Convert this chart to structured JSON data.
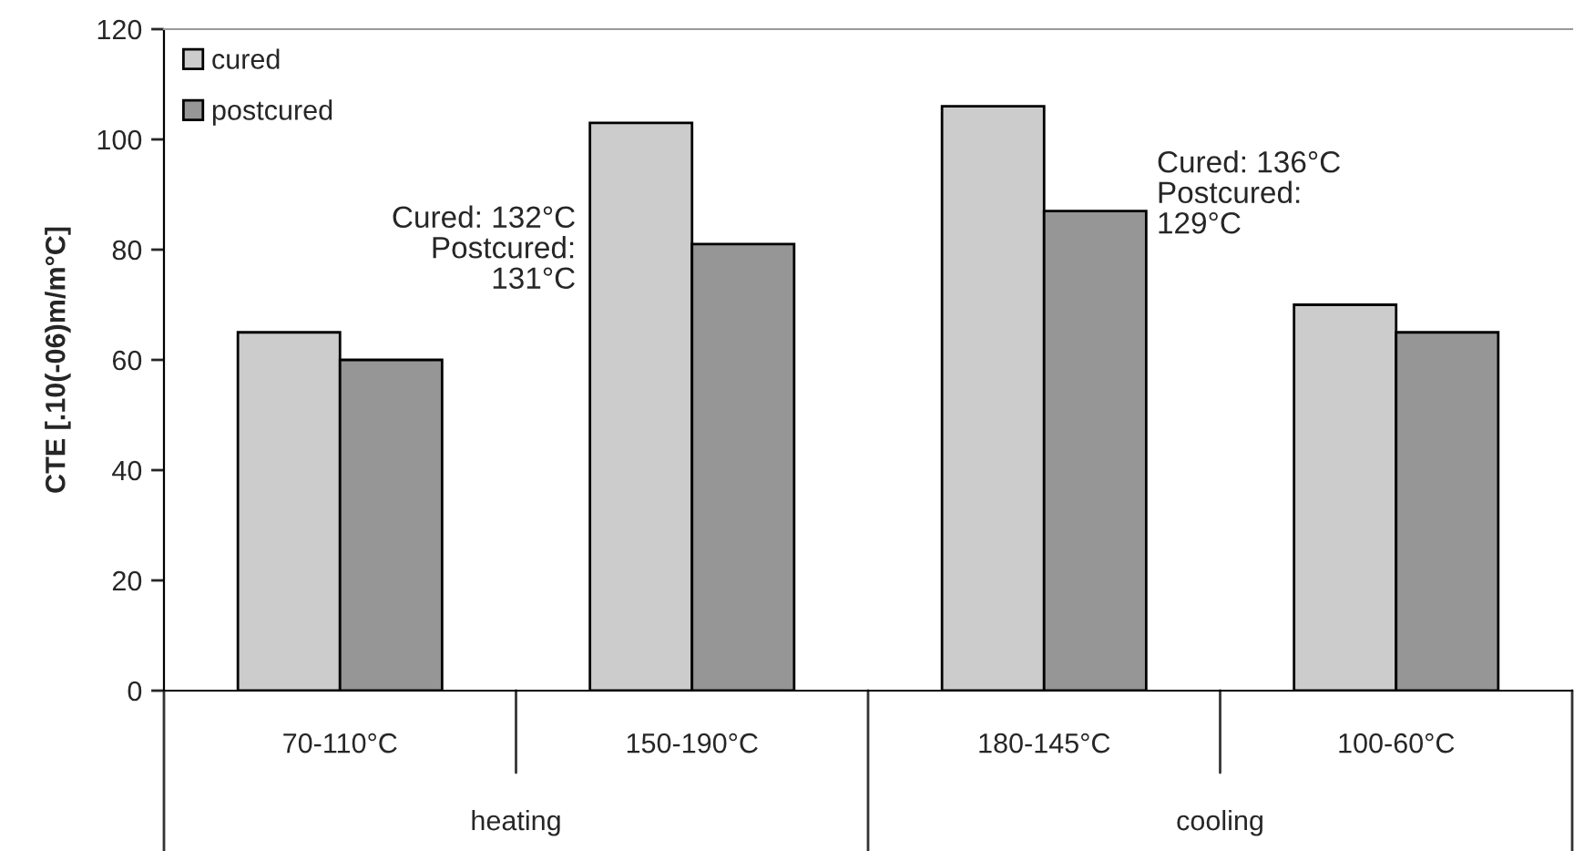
{
  "chart_data": {
    "type": "bar",
    "ylabel": "CTE [.10(-06)m/m°C]",
    "categories": [
      "70-110°C",
      "150-190°C",
      "180-145°C",
      "100-60°C"
    ],
    "series": [
      {
        "name": "cured",
        "color": "#cccccc",
        "values": [
          65,
          103,
          106,
          70
        ]
      },
      {
        "name": "postcured",
        "color": "#969696",
        "values": [
          60,
          81,
          87,
          65
        ]
      }
    ],
    "ylim": [
      0,
      120
    ],
    "yticks": [
      0,
      20,
      40,
      60,
      80,
      100,
      120
    ],
    "annotations": [
      "Cured: 132°C\nPostcured:\n131°C",
      "Cured: 136°C\nPostcured:\n129°C",
      "heating",
      "cooling"
    ],
    "grid": false,
    "legend": "top left"
  }
}
